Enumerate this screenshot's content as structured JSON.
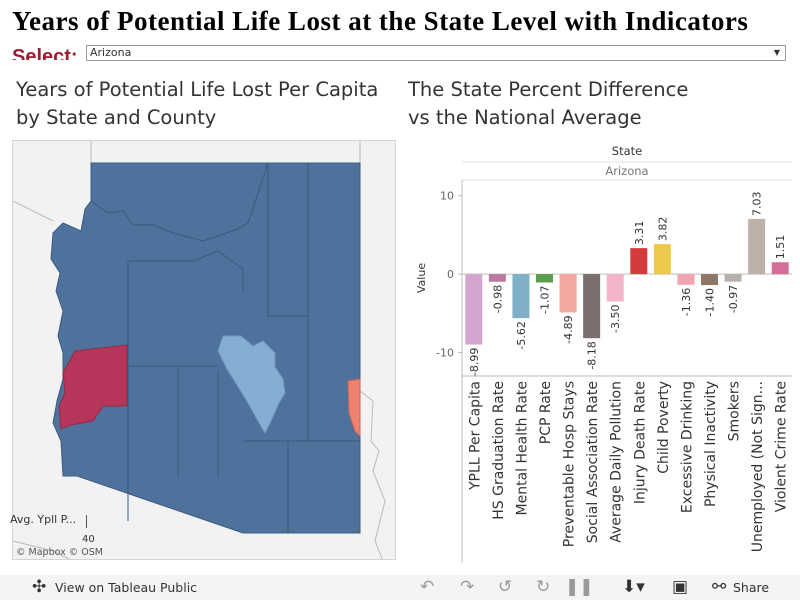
{
  "dashboard": {
    "title": "Years of Potential Life Lost at the State Level with Indicators",
    "select_label": "Select:",
    "select_value": "Arizona"
  },
  "map_panel": {
    "title_line1": "Years of Potential Life Lost Per Capita",
    "title_line2": "by State and County",
    "legend_title": "Avg. Ypll P...",
    "legend_value": "40",
    "attribution": "© Mapbox  © OSM",
    "colors": {
      "base": "#4e729b",
      "highlight_light": "#86aed3",
      "highlight_red": "#b5365a",
      "highlight_salmon": "#f08070",
      "background": "#f2f2f2"
    }
  },
  "chart_panel": {
    "title_line1": "The State Percent Difference",
    "title_line2": "vs the National Average"
  },
  "chart_data": {
    "type": "bar",
    "column_header": "State",
    "column_value": "Arizona",
    "ylabel": "Value",
    "ylim": [
      -13,
      12
    ],
    "yticks": [
      10,
      0,
      -10
    ],
    "categories": [
      "YPLL Per Capita",
      "HS Graduation Rate",
      "Mental Health Rate",
      "PCP Rate",
      "Preventable Hosp Stays",
      "Social Association Rate",
      "Average Daily Pollution",
      "Injury Death Rate",
      "Child Poverty",
      "Excessive Drinking",
      "Physical Inactivity",
      "Smokers",
      "Unemployed (Not Sign...",
      "Violent Crime Rate"
    ],
    "values": [
      -8.99,
      -0.98,
      -5.62,
      -1.07,
      -4.89,
      -8.18,
      -3.5,
      3.31,
      3.82,
      -1.36,
      -1.4,
      -0.97,
      7.03,
      1.51
    ],
    "labels": [
      "-8.99",
      "-0.98",
      "-5.62",
      "-1.07",
      "-4.89",
      "-8.18",
      "-3.50",
      "3.31",
      "3.82",
      "-1.36",
      "-1.40",
      "-0.97",
      "7.03",
      "1.51"
    ],
    "colors": [
      "#d5a6cd",
      "#b97aa2",
      "#7fb0c7",
      "#5a9e4b",
      "#f4a7a0",
      "#7b6e6e",
      "#f2b5c8",
      "#d63b3b",
      "#ecc94b",
      "#f3a3b0",
      "#8f7766",
      "#b8b0ac",
      "#bdb1aa",
      "#d46d98"
    ],
    "grid": false
  },
  "footer": {
    "view_link": "View on Tableau Public",
    "share_label": "Share",
    "icons": [
      "tableau-logo-icon",
      "undo-icon",
      "redo-icon",
      "revert-icon",
      "pause-icon",
      "download-icon",
      "fullscreen-icon",
      "share-icon"
    ]
  }
}
